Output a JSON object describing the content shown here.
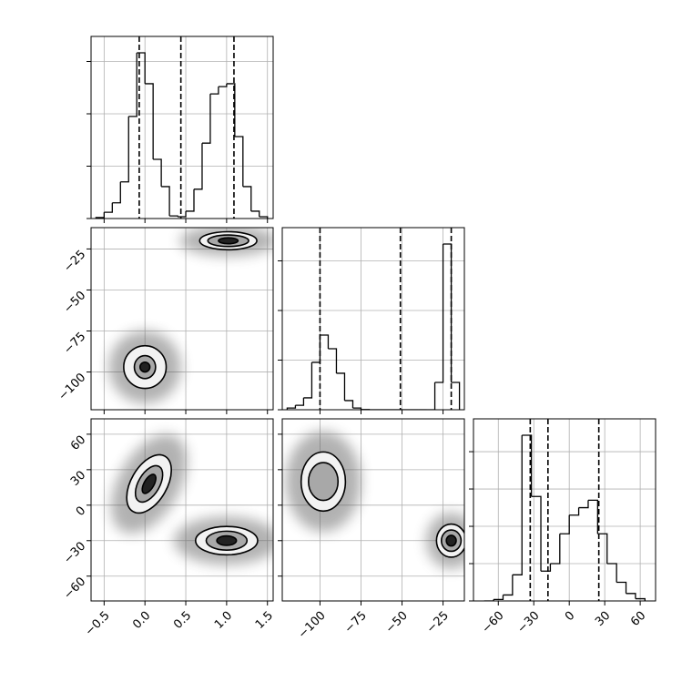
{
  "chart_data": [
    {
      "type": "histogram",
      "color": "#000000",
      "grid": true,
      "bins": [
        -0.6,
        -0.5,
        -0.4,
        -0.3,
        -0.2,
        -0.1,
        0,
        0.1,
        0.2,
        0.3,
        0.4,
        0.5,
        0.6,
        0.7,
        0.8,
        0.9,
        1.0,
        1.1,
        1.2,
        1.3,
        1.4,
        1.5
      ],
      "values": [
        20,
        120,
        300,
        700,
        1950,
        3165,
        2575,
        1130,
        610,
        50,
        35,
        140,
        560,
        1440,
        2380,
        2520,
        2575,
        1565,
        610,
        140,
        35
      ],
      "quantiles": [
        -0.07,
        0.44,
        1.09
      ],
      "xlim": [
        -0.66,
        1.57
      ],
      "xticks": [
        -0.5,
        0,
        0.5,
        1,
        1.5
      ],
      "ylim": [
        0,
        3478
      ],
      "yticks": [
        0,
        1000,
        2000,
        3000
      ]
    },
    {
      "type": "contour",
      "color": "#000000",
      "grid": true,
      "xlim": [
        -0.66,
        1.57
      ],
      "xticks": [
        -0.5,
        0,
        0.5,
        1,
        1.5
      ],
      "ylim": [
        -123,
        -12
      ],
      "yticks": [
        {
          "value": -100,
          "label": "−100"
        },
        {
          "value": -75,
          "label": "−75"
        },
        {
          "value": -50,
          "label": "−50"
        },
        {
          "value": -25,
          "label": "−25"
        }
      ],
      "contours": [
        {
          "angle": 0,
          "levels": [
            {
              "cx": 0.0,
              "cy": -97,
              "rx": 0.26,
              "ry": 13
            },
            {
              "cx": 0.0,
              "cy": -97,
              "rx": 0.13,
              "ry": 7
            },
            {
              "cx": 0.0,
              "cy": -97,
              "rx": 0.06,
              "ry": 3
            }
          ]
        },
        {
          "angle": 0,
          "levels": [
            {
              "cx": 1.02,
              "cy": -20,
              "rx": 0.35,
              "ry": 5.5
            },
            {
              "cx": 1.02,
              "cy": -20,
              "rx": 0.25,
              "ry": 3.5
            },
            {
              "cx": 1.02,
              "cy": -20,
              "rx": 0.12,
              "ry": 1.8
            }
          ]
        }
      ]
    },
    {
      "type": "histogram",
      "color": "#000000",
      "grid": true,
      "bins": [
        -120,
        -115,
        -110,
        -105,
        -100,
        -95,
        -90,
        -85,
        -80,
        -75,
        -70,
        -65,
        -60,
        -55,
        -50,
        -45,
        -40,
        -35,
        -30,
        -25,
        -20,
        -15
      ],
      "values": [
        70,
        180,
        480,
        1910,
        3010,
        2460,
        1470,
        370,
        70,
        10,
        0,
        0,
        0,
        0,
        0,
        0,
        0,
        0,
        1100,
        6680,
        1100
      ],
      "quantiles": [
        -100,
        -51,
        -20
      ],
      "xlim": [
        -123,
        -12
      ],
      "xticks": [
        -100,
        -75,
        -50,
        -25
      ],
      "ylim": [
        0,
        7340
      ],
      "yticks": [
        0,
        2000,
        4000,
        6000
      ]
    },
    {
      "type": "contour",
      "color": "#000000",
      "grid": true,
      "xlim": [
        -0.66,
        1.57
      ],
      "xticks": [
        {
          "value": -0.5,
          "label": "−0.5"
        },
        {
          "value": 0,
          "label": "0.0"
        },
        0.5,
        {
          "value": 1,
          "label": "1.0"
        },
        1.5
      ],
      "ylim": [
        -81,
        73
      ],
      "yticks": [
        {
          "value": -60,
          "label": "−60"
        },
        {
          "value": -30,
          "label": "−30"
        },
        0,
        30,
        60
      ],
      "contours": [
        {
          "angle": 30,
          "levels": [
            {
              "cx": 0.05,
              "cy": 18,
              "rx": 0.22,
              "ry": 27
            },
            {
              "cx": 0.05,
              "cy": 18,
              "rx": 0.13,
              "ry": 17
            },
            {
              "cx": 0.05,
              "cy": 18,
              "rx": 0.06,
              "ry": 9
            }
          ]
        },
        {
          "angle": 0,
          "levels": [
            {
              "cx": 1.0,
              "cy": -30,
              "rx": 0.38,
              "ry": 12
            },
            {
              "cx": 1.0,
              "cy": -30,
              "rx": 0.25,
              "ry": 8
            },
            {
              "cx": 1.0,
              "cy": -30,
              "rx": 0.12,
              "ry": 4
            }
          ]
        }
      ]
    },
    {
      "type": "contour",
      "color": "#000000",
      "grid": true,
      "xlim": [
        -123,
        -12
      ],
      "xticks": [
        {
          "value": -100,
          "label": "−100"
        },
        {
          "value": -75,
          "label": "−75"
        },
        {
          "value": -50,
          "label": "−50"
        },
        {
          "value": -25,
          "label": "−25"
        }
      ],
      "ylim": [
        -81,
        73
      ],
      "yticks": [
        -60,
        -30,
        0,
        30,
        60
      ],
      "contours": [
        {
          "angle": 0,
          "levels": [
            {
              "cx": -98,
              "cy": 20,
              "rx": 13.5,
              "ry": 25
            },
            {
              "cx": -98,
              "cy": 20,
              "rx": 9,
              "ry": 16
            }
          ]
        },
        {
          "angle": 0,
          "levels": [
            {
              "cx": -20,
              "cy": -30,
              "rx": 9,
              "ry": 14
            },
            {
              "cx": -20,
              "cy": -30,
              "rx": 6,
              "ry": 9
            },
            {
              "cx": -20,
              "cy": -30,
              "rx": 3,
              "ry": 4.5
            }
          ]
        }
      ]
    },
    {
      "type": "histogram",
      "color": "#000000",
      "grid": true,
      "bins": [
        -72,
        -64,
        -56,
        -48,
        -40,
        -32,
        -24,
        -16,
        -8,
        0,
        8,
        16,
        24,
        32,
        40,
        48,
        56,
        64
      ],
      "values": [
        0,
        20,
        80,
        350,
        2220,
        1400,
        400,
        500,
        900,
        1150,
        1250,
        1350,
        900,
        500,
        250,
        100,
        30
      ],
      "quantiles": [
        -33,
        -18,
        25
      ],
      "xlim": [
        -81,
        73
      ],
      "xticks": [
        {
          "value": -60,
          "label": "−60"
        },
        {
          "value": -30,
          "label": "−30"
        },
        0,
        30,
        60
      ],
      "ylim": [
        0,
        2440
      ],
      "yticks": [
        0,
        500,
        1000,
        1500,
        2000
      ]
    }
  ]
}
